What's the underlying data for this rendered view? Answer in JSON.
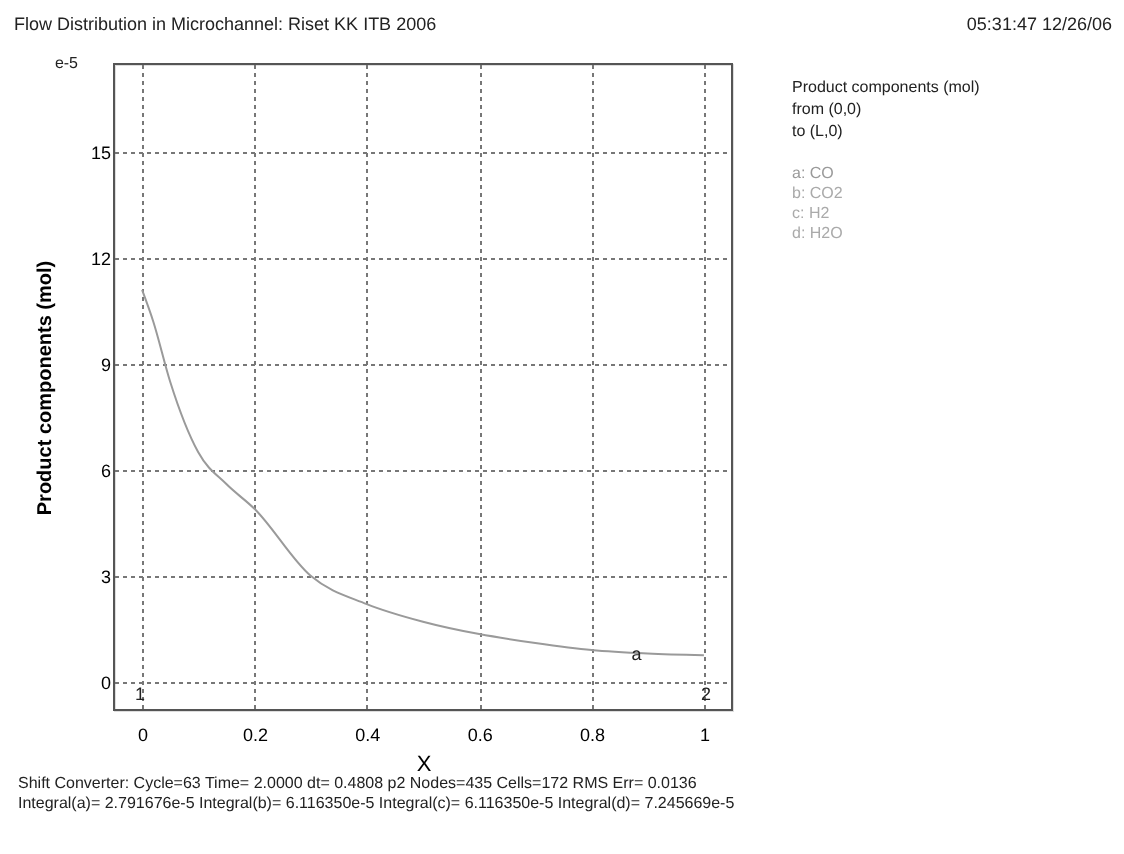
{
  "chart_data": {
    "type": "line",
    "title": "Flow Distribution in Microchannel: Riset KK ITB 2006",
    "xlabel": "X",
    "ylabel": "Product components (mol)",
    "legend_title": "Product components (mol)\nfrom (0,0)\nto (L,0)",
    "x": [
      0,
      0.02,
      0.05,
      0.1,
      0.15,
      0.2,
      0.3,
      0.4,
      0.5,
      0.6,
      0.7,
      0.8,
      0.9,
      1.0
    ],
    "series": [
      {
        "name": "a: CO",
        "color": "#9a9a9a",
        "values": [
          11.1,
          10.2,
          8.5,
          6.5,
          5.6,
          4.9,
          3.0,
          2.2,
          1.7,
          1.35,
          1.1,
          0.9,
          0.8,
          0.75
        ]
      }
    ],
    "xlim": [
      -0.05,
      1.05
    ],
    "ylim": [
      -0.8,
      17.5
    ],
    "xticks": [
      0,
      0.2,
      0.4,
      0.6,
      0.8,
      1
    ],
    "yticks": [
      0,
      3,
      6,
      9,
      12,
      15
    ],
    "grid": true,
    "legend": "right",
    "marker": "none",
    "line_style": "solid",
    "annotations": [
      "05:31:47 12/26/06",
      "e-5",
      "Shift Converter:  Cycle=63  Time= 2.0000  dt= 0.4808  p2  Nodes=435  Cells=172  RMS Err= 0.0136",
      "Integral(a)= 2.791676e-5  Integral(b)= 6.116350e-5  Integral(c)= 6.116350e-5  Integral(d)= 7.245669e-5",
      "b: CO2",
      "c: H2",
      "d: H2O",
      "1",
      "2",
      {
        "text": "a",
        "x": 0.88,
        "y": 0.8
      }
    ]
  }
}
